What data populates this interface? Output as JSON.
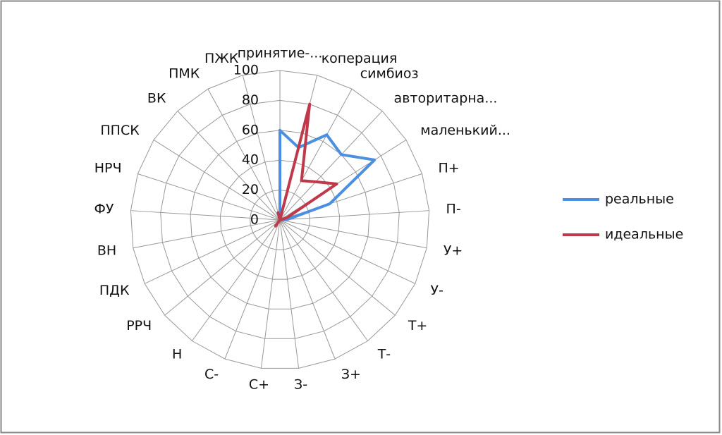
{
  "chart_data": {
    "type": "radar",
    "categories": [
      "принятие-...",
      "коперация",
      "симбиоз",
      "авторитарна...",
      "маленький...",
      "П+",
      "П-",
      "У+",
      "У-",
      "Т+",
      "Т-",
      "З+",
      "З-",
      "С+",
      "С-",
      "Н",
      "РРЧ",
      "ПДК",
      "ВН",
      "ФУ",
      "НРЧ",
      "ППСК",
      "ВК",
      "ПМК",
      "ПЖК"
    ],
    "series": [
      {
        "name": "реальные",
        "color": "#4a8fe0",
        "values": [
          60,
          50,
          65,
          60,
          75,
          35,
          5,
          0,
          0,
          0,
          0,
          0,
          0,
          0,
          0,
          0,
          0,
          0,
          0,
          0,
          0,
          0,
          0,
          0,
          0
        ]
      },
      {
        "name": "идеальные",
        "color": "#c0394b",
        "values": [
          0,
          80,
          30,
          35,
          45,
          5,
          0,
          0,
          0,
          0,
          0,
          0,
          0,
          0,
          0,
          5,
          0,
          0,
          0,
          0,
          0,
          0,
          0,
          0,
          5
        ]
      }
    ],
    "ylim": [
      0,
      100
    ],
    "yticks": [
      0,
      20,
      40,
      60,
      80,
      100
    ],
    "grid": true,
    "legend": "right"
  }
}
